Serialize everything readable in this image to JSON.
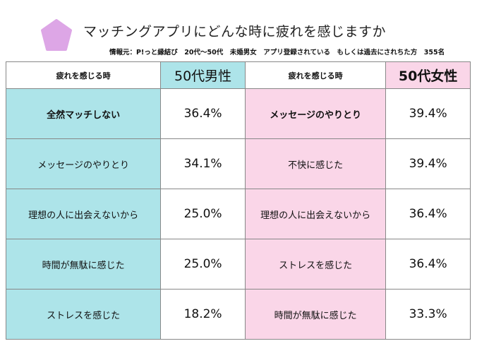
{
  "title": "マッチングアプリにどんな時に疲れを感じますか",
  "source": "情報元：P!っと縁結び　20代〜50代　未婚男女　アプリ登録されている　もしくは過去にされちた方　355名",
  "colors": {
    "pentagon": "#dda6e6",
    "male": "#ade4e9",
    "female": "#fad6e8"
  },
  "headers": {
    "col1": "疲れを感じる時",
    "male": "50代男性",
    "col3": "疲れを感じる時",
    "female": "50代女性"
  },
  "rows": [
    {
      "male_reason": "全然マッチしない",
      "male_value": "36.4%",
      "female_reason": "メッセージのやりとり",
      "female_value": "39.4%"
    },
    {
      "male_reason": "メッセージのやりとり",
      "male_value": "34.1%",
      "female_reason": "不快に感じた",
      "female_value": "39.4%"
    },
    {
      "male_reason": "理想の人に出会えないから",
      "male_value": "25.0%",
      "female_reason": "理想の人に出会えないから",
      "female_value": "36.4%"
    },
    {
      "male_reason": "時間が無駄に感じた",
      "male_value": "25.0%",
      "female_reason": "ストレスを感じた",
      "female_value": "36.4%"
    },
    {
      "male_reason": "ストレスを感じた",
      "male_value": "18.2%",
      "female_reason": "時間が無駄に感じた",
      "female_value": "33.3%"
    }
  ]
}
